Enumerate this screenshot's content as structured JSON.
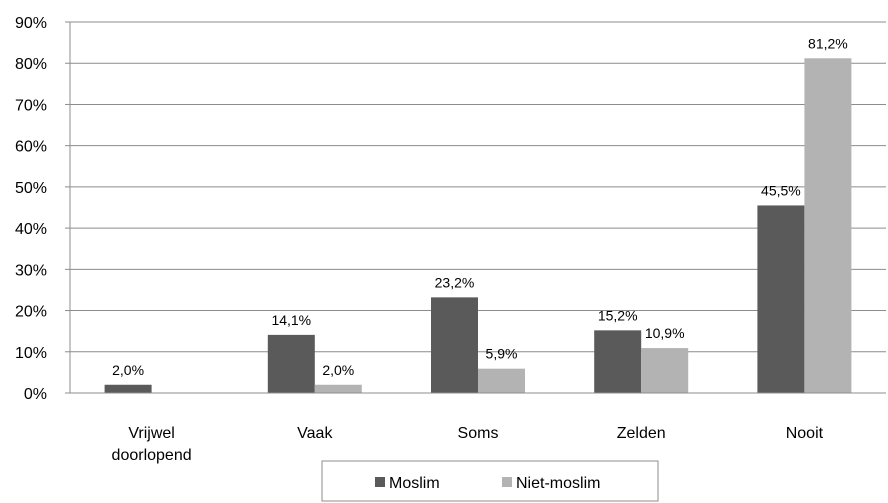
{
  "chart_data": {
    "type": "bar",
    "categories": [
      [
        "Vrijwel",
        "doorlopend"
      ],
      [
        "Vaak"
      ],
      [
        "Soms"
      ],
      [
        "Zelden"
      ],
      [
        "Nooit"
      ]
    ],
    "series": [
      {
        "name": "Moslim",
        "color": "#5a5a5a",
        "values": [
          2.0,
          14.1,
          23.2,
          15.2,
          45.5
        ],
        "labels": [
          "2,0%",
          "14,1%",
          "23,2%",
          "15,2%",
          "45,5%"
        ]
      },
      {
        "name": "Niet-moslim",
        "color": "#b3b3b3",
        "values": [
          0,
          2.0,
          5.9,
          10.9,
          81.2
        ],
        "labels": [
          "",
          "2,0%",
          "5,9%",
          "10,9%",
          "81,2%"
        ]
      }
    ],
    "yticks": [
      "0%",
      "10%",
      "20%",
      "30%",
      "40%",
      "50%",
      "60%",
      "70%",
      "80%",
      "90%"
    ],
    "ylim": [
      0,
      90
    ],
    "grid": true,
    "legend_position": "bottom",
    "title": "",
    "xlabel": "",
    "ylabel": ""
  }
}
